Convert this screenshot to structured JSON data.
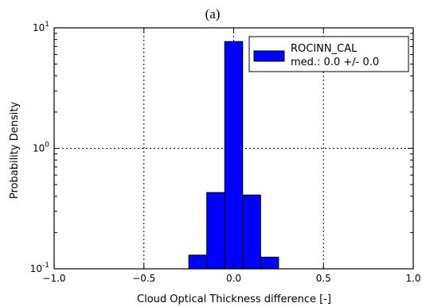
{
  "chart_data": {
    "type": "bar",
    "panel_label": "(a)",
    "xlabel": "Cloud Optical Thickness  difference [-]",
    "ylabel": "Probability Density",
    "xlim": [
      -1.0,
      1.0
    ],
    "ylim": [
      0.1,
      10
    ],
    "yscale": "log",
    "grid": true,
    "grid_style": "dotted",
    "legend_position": "top-right",
    "x_ticks": [
      {
        "value": -1.0,
        "label": "−1.0"
      },
      {
        "value": -0.5,
        "label": "−0.5"
      },
      {
        "value": 0.0,
        "label": "0.0"
      },
      {
        "value": 0.5,
        "label": "0.5"
      },
      {
        "value": 1.0,
        "label": "1.0"
      }
    ],
    "y_ticks": [
      {
        "value": 0.1,
        "base": "10",
        "exp": "-1"
      },
      {
        "value": 1,
        "base": "10",
        "exp": "0"
      },
      {
        "value": 10,
        "base": "10",
        "exp": "1"
      }
    ],
    "bin_width": 0.1,
    "series": [
      {
        "name": "ROCINN_CAL",
        "color": "#0000ff",
        "bins": [
          {
            "x0": -0.25,
            "x1": -0.15,
            "value": 0.13
          },
          {
            "x0": -0.15,
            "x1": -0.05,
            "value": 0.43
          },
          {
            "x0": -0.05,
            "x1": 0.05,
            "value": 7.7
          },
          {
            "x0": 0.05,
            "x1": 0.15,
            "value": 0.41
          },
          {
            "x0": 0.15,
            "x1": 0.25,
            "value": 0.125
          }
        ]
      }
    ],
    "legend": {
      "label": "ROCINN_CAL",
      "stats": "med.: 0.0 +/- 0.0"
    }
  }
}
